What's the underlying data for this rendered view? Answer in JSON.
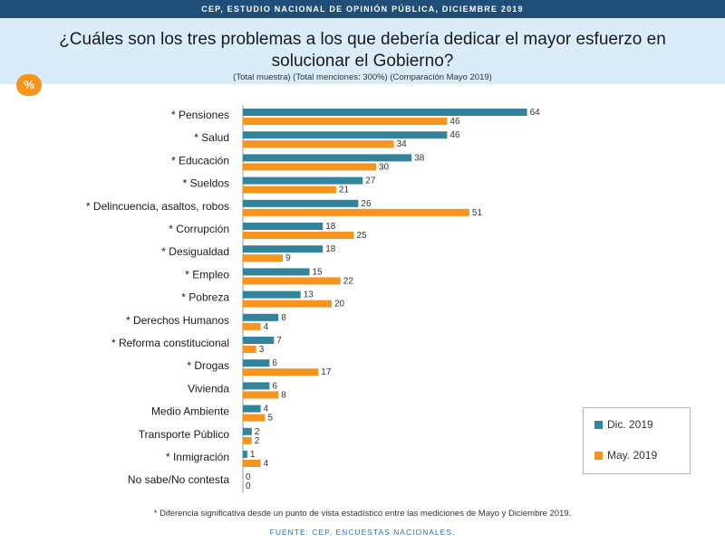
{
  "header": {
    "banner": "CEP, ESTUDIO NACIONAL DE OPINIÓN PÚBLICA, DICIEMBRE 2019",
    "title": "¿Cuáles son los tres problemas a los que debería dedicar el mayor esfuerzo en solucionar el Gobierno?",
    "subtitle": "(Total muestra) (Total menciones: 300%) (Comparación Mayo 2019)",
    "badge": "%"
  },
  "colors": {
    "dec": "#31849b",
    "may": "#f7941d",
    "banner": "#1f4e79",
    "title_bg": "#d9ecf7"
  },
  "chart_data": {
    "type": "bar",
    "orientation": "horizontal",
    "categories": [
      "* Pensiones",
      "* Salud",
      "* Educación",
      "* Sueldos",
      "* Delincuencia, asaltos, robos",
      "* Corrupción",
      "* Desigualdad",
      "* Empleo",
      "* Pobreza",
      "* Derechos Humanos",
      "* Reforma constitucional",
      "* Drogas",
      "Vivienda",
      "Medio Ambiente",
      "Transporte Público",
      "* Inmigración",
      "No sabe/No contesta"
    ],
    "series": [
      {
        "name": "Dic. 2019",
        "values": [
          64,
          46,
          38,
          27,
          26,
          18,
          18,
          15,
          13,
          8,
          7,
          6,
          6,
          4,
          2,
          1,
          0
        ]
      },
      {
        "name": "May. 2019",
        "values": [
          46,
          34,
          30,
          21,
          51,
          25,
          9,
          22,
          20,
          4,
          3,
          17,
          8,
          5,
          2,
          4,
          0
        ]
      }
    ],
    "legend_position": "bottom-right",
    "grid": false,
    "xaxis_visible": false
  },
  "legend": {
    "dec": "Dic. 2019",
    "may": "May. 2019"
  },
  "footer": {
    "note": "* Diferencia significativa desde un punto de vista estadístico entre las mediciones de Mayo y Diciembre 2019.",
    "source": "FUENTE: CEP, ENCUESTAS NACIONALES."
  }
}
